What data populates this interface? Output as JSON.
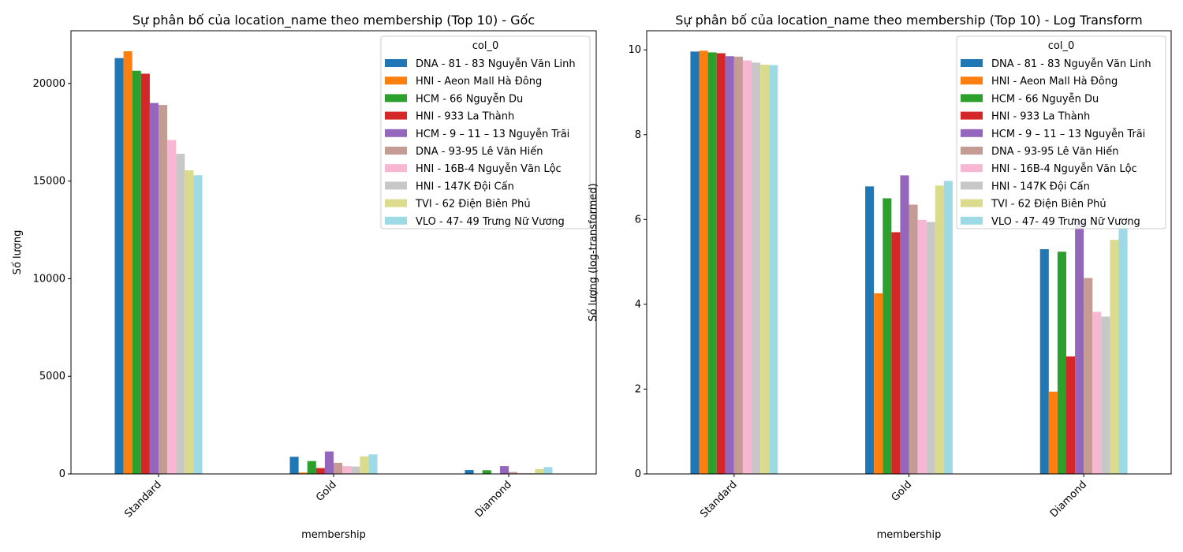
{
  "chart_data": [
    {
      "type": "bar",
      "title": "Sự phân bố của location_name theo membership (Top 10) - Gốc",
      "xlabel": "membership",
      "ylabel": "Số lượng",
      "ylim": [
        0,
        22700
      ],
      "yticks": [
        0,
        5000,
        10000,
        15000,
        20000
      ],
      "grid": false,
      "legend_title": "col_0",
      "legend_position": "top-right",
      "categories": [
        "Standard",
        "Gold",
        "Diamond"
      ],
      "series": [
        {
          "name": "DNA - 81 - 83 Nguyễn Văn Linh",
          "color": "#1f77b4",
          "values": [
            21300,
            880,
            200
          ]
        },
        {
          "name": "HNI - Aeon Mall Hà Đông",
          "color": "#ff7f0e",
          "values": [
            21650,
            70,
            7
          ]
        },
        {
          "name": "HCM - 66 Nguyễn Du",
          "color": "#2ca02c",
          "values": [
            20650,
            660,
            190
          ]
        },
        {
          "name": "HNI - 933 La Thành",
          "color": "#d62728",
          "values": [
            20500,
            300,
            16
          ]
        },
        {
          "name": "HCM - 9 – 11 – 13 Nguyễn Trãi",
          "color": "#9467bd",
          "values": [
            19000,
            1150,
            400
          ]
        },
        {
          "name": "DNA - 93-95 Lê Văn Hiến",
          "color": "#c49c94",
          "values": [
            18900,
            570,
            100
          ]
        },
        {
          "name": "HNI - 16B-4 Nguyễn Văn Lộc",
          "color": "#f7b6d2",
          "values": [
            17100,
            400,
            45
          ]
        },
        {
          "name": "HNI - 147K Đội Cấn",
          "color": "#c7c7c7",
          "values": [
            16400,
            380,
            40
          ]
        },
        {
          "name": "TVI - 62 Điện Biên Phủ",
          "color": "#dbdb8d",
          "values": [
            15550,
            900,
            250
          ]
        },
        {
          "name": "VLO - 47- 49 Trưng Nữ Vương",
          "color": "#9edae5",
          "values": [
            15300,
            1000,
            350
          ]
        }
      ]
    },
    {
      "type": "bar",
      "title": "Sự phân bố của location_name theo membership (Top 10) - Log Transform",
      "xlabel": "membership",
      "ylabel": "Số lượng (log-transformed)",
      "ylim": [
        0,
        10.45
      ],
      "yticks": [
        0,
        2,
        4,
        6,
        8,
        10
      ],
      "grid": false,
      "legend_title": "col_0",
      "legend_position": "top-right",
      "categories": [
        "Standard",
        "Gold",
        "Diamond"
      ],
      "series": [
        {
          "name": "DNA - 81 - 83 Nguyễn Văn Linh",
          "color": "#1f77b4",
          "values": [
            9.96,
            6.78,
            5.3
          ]
        },
        {
          "name": "HNI - Aeon Mall Hà Đông",
          "color": "#ff7f0e",
          "values": [
            9.98,
            4.26,
            1.94
          ]
        },
        {
          "name": "HCM - 66 Nguyễn Du",
          "color": "#2ca02c",
          "values": [
            9.94,
            6.5,
            5.24
          ]
        },
        {
          "name": "HNI - 933 La Thành",
          "color": "#d62728",
          "values": [
            9.92,
            5.7,
            2.77
          ]
        },
        {
          "name": "HCM - 9 – 11 – 13 Nguyễn Trãi",
          "color": "#9467bd",
          "values": [
            9.85,
            7.04,
            5.99
          ]
        },
        {
          "name": "DNA - 93-95 Lê Văn Hiến",
          "color": "#c49c94",
          "values": [
            9.84,
            6.35,
            4.62
          ]
        },
        {
          "name": "HNI - 16B-4 Nguyễn Văn Lộc",
          "color": "#f7b6d2",
          "values": [
            9.75,
            5.99,
            3.82
          ]
        },
        {
          "name": "HNI - 147K Đội Cấn",
          "color": "#c7c7c7",
          "values": [
            9.7,
            5.94,
            3.71
          ]
        },
        {
          "name": "TVI - 62 Điện Biên Phủ",
          "color": "#dbdb8d",
          "values": [
            9.65,
            6.8,
            5.52
          ]
        },
        {
          "name": "VLO - 47- 49 Trưng Nữ Vương",
          "color": "#9edae5",
          "values": [
            9.64,
            6.91,
            5.86
          ]
        }
      ]
    }
  ]
}
